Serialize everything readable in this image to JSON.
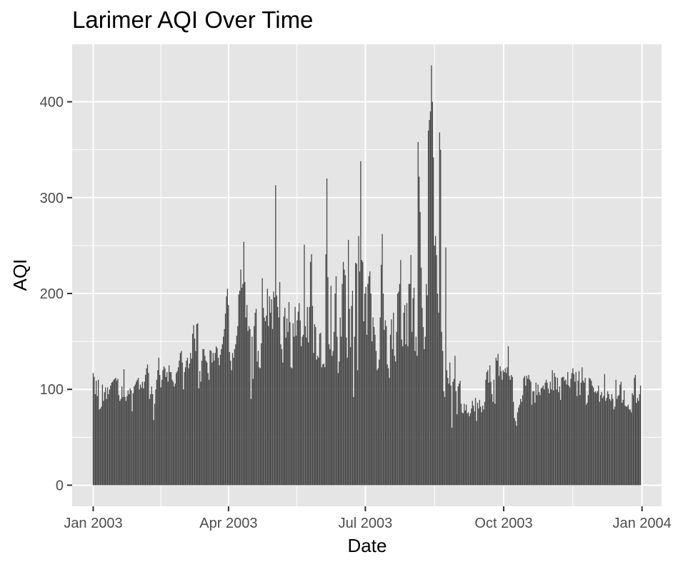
{
  "chart_data": {
    "type": "bar",
    "title": "Larimer AQI Over Time",
    "xlabel": "Date",
    "ylabel": "AQI",
    "x_start_date": "2003-01-01",
    "x_end_date": "2003-12-31",
    "xlim": [
      "2002-12-18",
      "2004-01-14"
    ],
    "ylim": [
      -22,
      460
    ],
    "x_ticks": [
      {
        "date": "2003-01-01",
        "label": "Jan 2003"
      },
      {
        "date": "2003-04-01",
        "label": "Apr 2003"
      },
      {
        "date": "2003-07-01",
        "label": "Jul 2003"
      },
      {
        "date": "2003-10-01",
        "label": "Oct 2003"
      },
      {
        "date": "2004-01-01",
        "label": "Jan 2004"
      }
    ],
    "y_ticks": [
      0,
      100,
      200,
      300,
      400
    ],
    "y_tick_labels": [
      "0",
      "100",
      "200",
      "300",
      "400"
    ],
    "grid": true,
    "colors": {
      "panel": "#e5e5e5",
      "grid": "#ffffff",
      "bar": "#474747"
    },
    "series": [
      {
        "values": [
          117,
          113,
          95,
          109,
          93,
          110,
          79,
          80,
          82,
          105,
          88,
          97,
          102,
          90,
          102,
          95,
          100,
          104,
          107,
          108,
          110,
          111,
          112,
          109,
          111,
          94,
          88,
          90,
          103,
          92,
          121,
          92,
          88,
          93,
          99,
          95,
          101,
          99,
          77,
          96,
          103,
          105,
          108,
          110,
          112,
          100,
          105,
          102,
          108,
          101,
          108,
          115,
          122,
          126,
          117,
          90,
          95,
          103,
          95,
          68,
          85,
          100,
          110,
          120,
          133,
          115,
          102,
          110,
          120,
          124,
          122,
          113,
          118,
          108,
          125,
          118,
          118,
          110,
          108,
          103,
          106,
          117,
          119,
          123,
          130,
          138,
          140,
          128,
          100,
          118,
          123,
          130,
          133,
          122,
          127,
          138,
          132,
          158,
          167,
          153,
          140,
          168,
          169,
          101,
          119,
          108,
          130,
          142,
          142,
          135,
          130,
          128,
          117,
          110,
          141,
          140,
          128,
          138,
          130,
          138,
          145,
          143,
          133,
          125,
          136,
          142,
          147,
          155,
          163,
          179,
          197,
          205,
          188,
          139,
          130,
          120,
          138,
          133,
          142,
          147,
          156,
          166,
          199,
          203,
          225,
          206,
          210,
          254,
          212,
          175,
          188,
          161,
          166,
          163,
          90,
          155,
          111,
          166,
          180,
          184,
          129,
          140,
          123,
          122,
          148,
          216,
          185,
          175,
          171,
          177,
          205,
          166,
          197,
          180,
          194,
          163,
          202,
          196,
          313,
          198,
          186,
          175,
          212,
          147,
          142,
          128,
          176,
          185,
          154,
          174,
          160,
          191,
          170,
          123,
          122,
          169,
          155,
          186,
          156,
          172,
          181,
          190,
          172,
          145,
          155,
          157,
          251,
          166,
          154,
          186,
          149,
          186,
          233,
          241,
          187,
          138,
          168,
          165,
          131,
          135,
          133,
          158,
          159,
          123,
          126,
          127,
          123,
          241,
          320,
          217,
          147,
          142,
          208,
          135,
          140,
          160,
          200,
          218,
          155,
          117,
          129,
          175,
          155,
          210,
          233,
          225,
          219,
          154,
          133,
          256,
          184,
          144,
          187,
          203,
          92,
          155,
          232,
          231,
          120,
          260,
          223,
          338,
          235,
          233,
          171,
          200,
          207,
          157,
          210,
          218,
          223,
          200,
          150,
          175,
          165,
          157,
          140,
          120,
          122,
          131,
          175,
          230,
          262,
          200,
          162,
          172,
          166,
          126,
          122,
          112,
          157,
          173,
          142,
          180,
          135,
          129,
          160,
          200,
          202,
          210,
          235,
          152,
          145,
          180,
          188,
          147,
          190,
          145,
          210,
          210,
          240,
          160,
          195,
          206,
          140,
          155,
          135,
          358,
          322,
          285,
          227,
          185,
          165,
          142,
          155,
          210,
          198,
          370,
          381,
          390,
          438,
          400,
          342,
          250,
          260,
          240,
          200,
          180,
          368,
          350,
          160,
          140,
          98,
          92,
          248,
          120,
          112,
          106,
          128,
          104,
          60,
          108,
          111,
          135,
          98,
          74,
          103,
          106,
          109,
          85,
          76,
          75,
          85,
          78,
          84,
          75,
          76,
          72,
          75,
          80,
          88,
          83,
          77,
          91,
          67,
          86,
          80,
          89,
          82,
          76,
          83,
          79,
          87,
          110,
          118,
          120,
          107,
          125,
          108,
          95,
          87,
          110,
          85,
          133,
          130,
          137,
          114,
          124,
          119,
          110,
          120,
          118,
          122,
          117,
          123,
          145,
          114,
          110,
          115,
          113,
          87,
          70,
          67,
          62,
          76,
          81,
          84,
          90,
          87,
          94,
          112,
          114,
          104,
          114,
          111,
          115,
          110,
          108,
          84,
          98,
          98,
          86,
          107,
          94,
          105,
          97,
          94,
          101,
          102,
          104,
          100,
          107,
          110,
          107,
          101,
          96,
          108,
          100,
          120,
          99,
          117,
          113,
          100,
          112,
          97,
          103,
          89,
          112,
          113,
          113,
          109,
          110,
          105,
          118,
          104,
          102,
          111,
          117,
          122,
          116,
          108,
          118,
          93,
          109,
          119,
          94,
          107,
          123,
          109,
          107,
          112,
          84,
          86,
          94,
          112,
          111,
          109,
          104,
          102,
          97,
          98,
          96,
          98,
          104,
          87,
          94,
          97,
          91,
          93,
          116,
          88,
          91,
          98,
          95,
          90,
          88,
          95,
          90,
          79,
          82,
          110,
          90,
          93,
          94,
          105,
          108,
          86,
          89,
          99,
          83,
          82,
          82,
          84,
          79,
          79,
          76,
          96,
          94,
          112,
          115,
          86,
          91,
          88,
          95,
          104
        ]
      }
    ]
  }
}
